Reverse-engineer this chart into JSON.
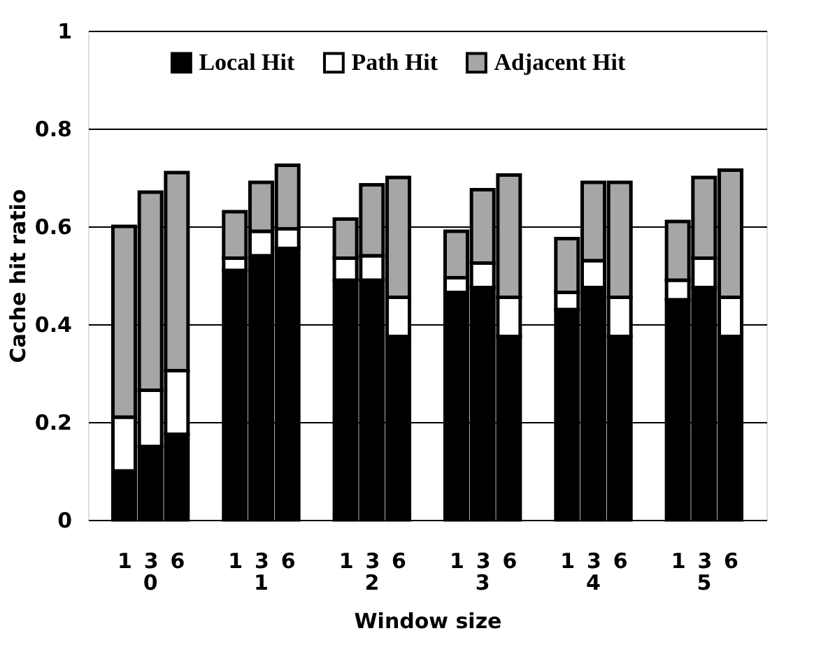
{
  "chart_data": {
    "type": "bar",
    "stacked": true,
    "xlabel": "Window size",
    "ylabel": "Cache hit ratio",
    "categories": [
      "1",
      "3",
      "6",
      "1",
      "3",
      "6",
      "1",
      "3",
      "6",
      "1",
      "3",
      "6",
      "1",
      "3",
      "6",
      "1",
      "3",
      "6"
    ],
    "annotations": [
      "0",
      "1",
      "2",
      "3",
      "4",
      "5"
    ],
    "series": [
      {
        "name": "Local Hit",
        "color": "#000000",
        "values": [
          0.1,
          0.15,
          0.175,
          0.51,
          0.54,
          0.555,
          0.49,
          0.49,
          0.375,
          0.465,
          0.475,
          0.375,
          0.43,
          0.475,
          0.375,
          0.45,
          0.475,
          0.375
        ]
      },
      {
        "name": "Path Hit",
        "color": "#ffffff",
        "values": [
          0.11,
          0.115,
          0.13,
          0.025,
          0.05,
          0.04,
          0.045,
          0.05,
          0.08,
          0.03,
          0.05,
          0.08,
          0.035,
          0.055,
          0.08,
          0.04,
          0.06,
          0.08
        ]
      },
      {
        "name": "Adjacent Hit",
        "color": "#a6a6a6",
        "values": [
          0.39,
          0.405,
          0.405,
          0.095,
          0.1,
          0.13,
          0.08,
          0.145,
          0.245,
          0.095,
          0.15,
          0.25,
          0.11,
          0.16,
          0.235,
          0.12,
          0.165,
          0.26
        ]
      }
    ],
    "ylim": [
      0,
      1
    ],
    "yticks": [
      0,
      0.2,
      0.4,
      0.6,
      0.8,
      1
    ],
    "grid": "y",
    "legend": "top"
  }
}
